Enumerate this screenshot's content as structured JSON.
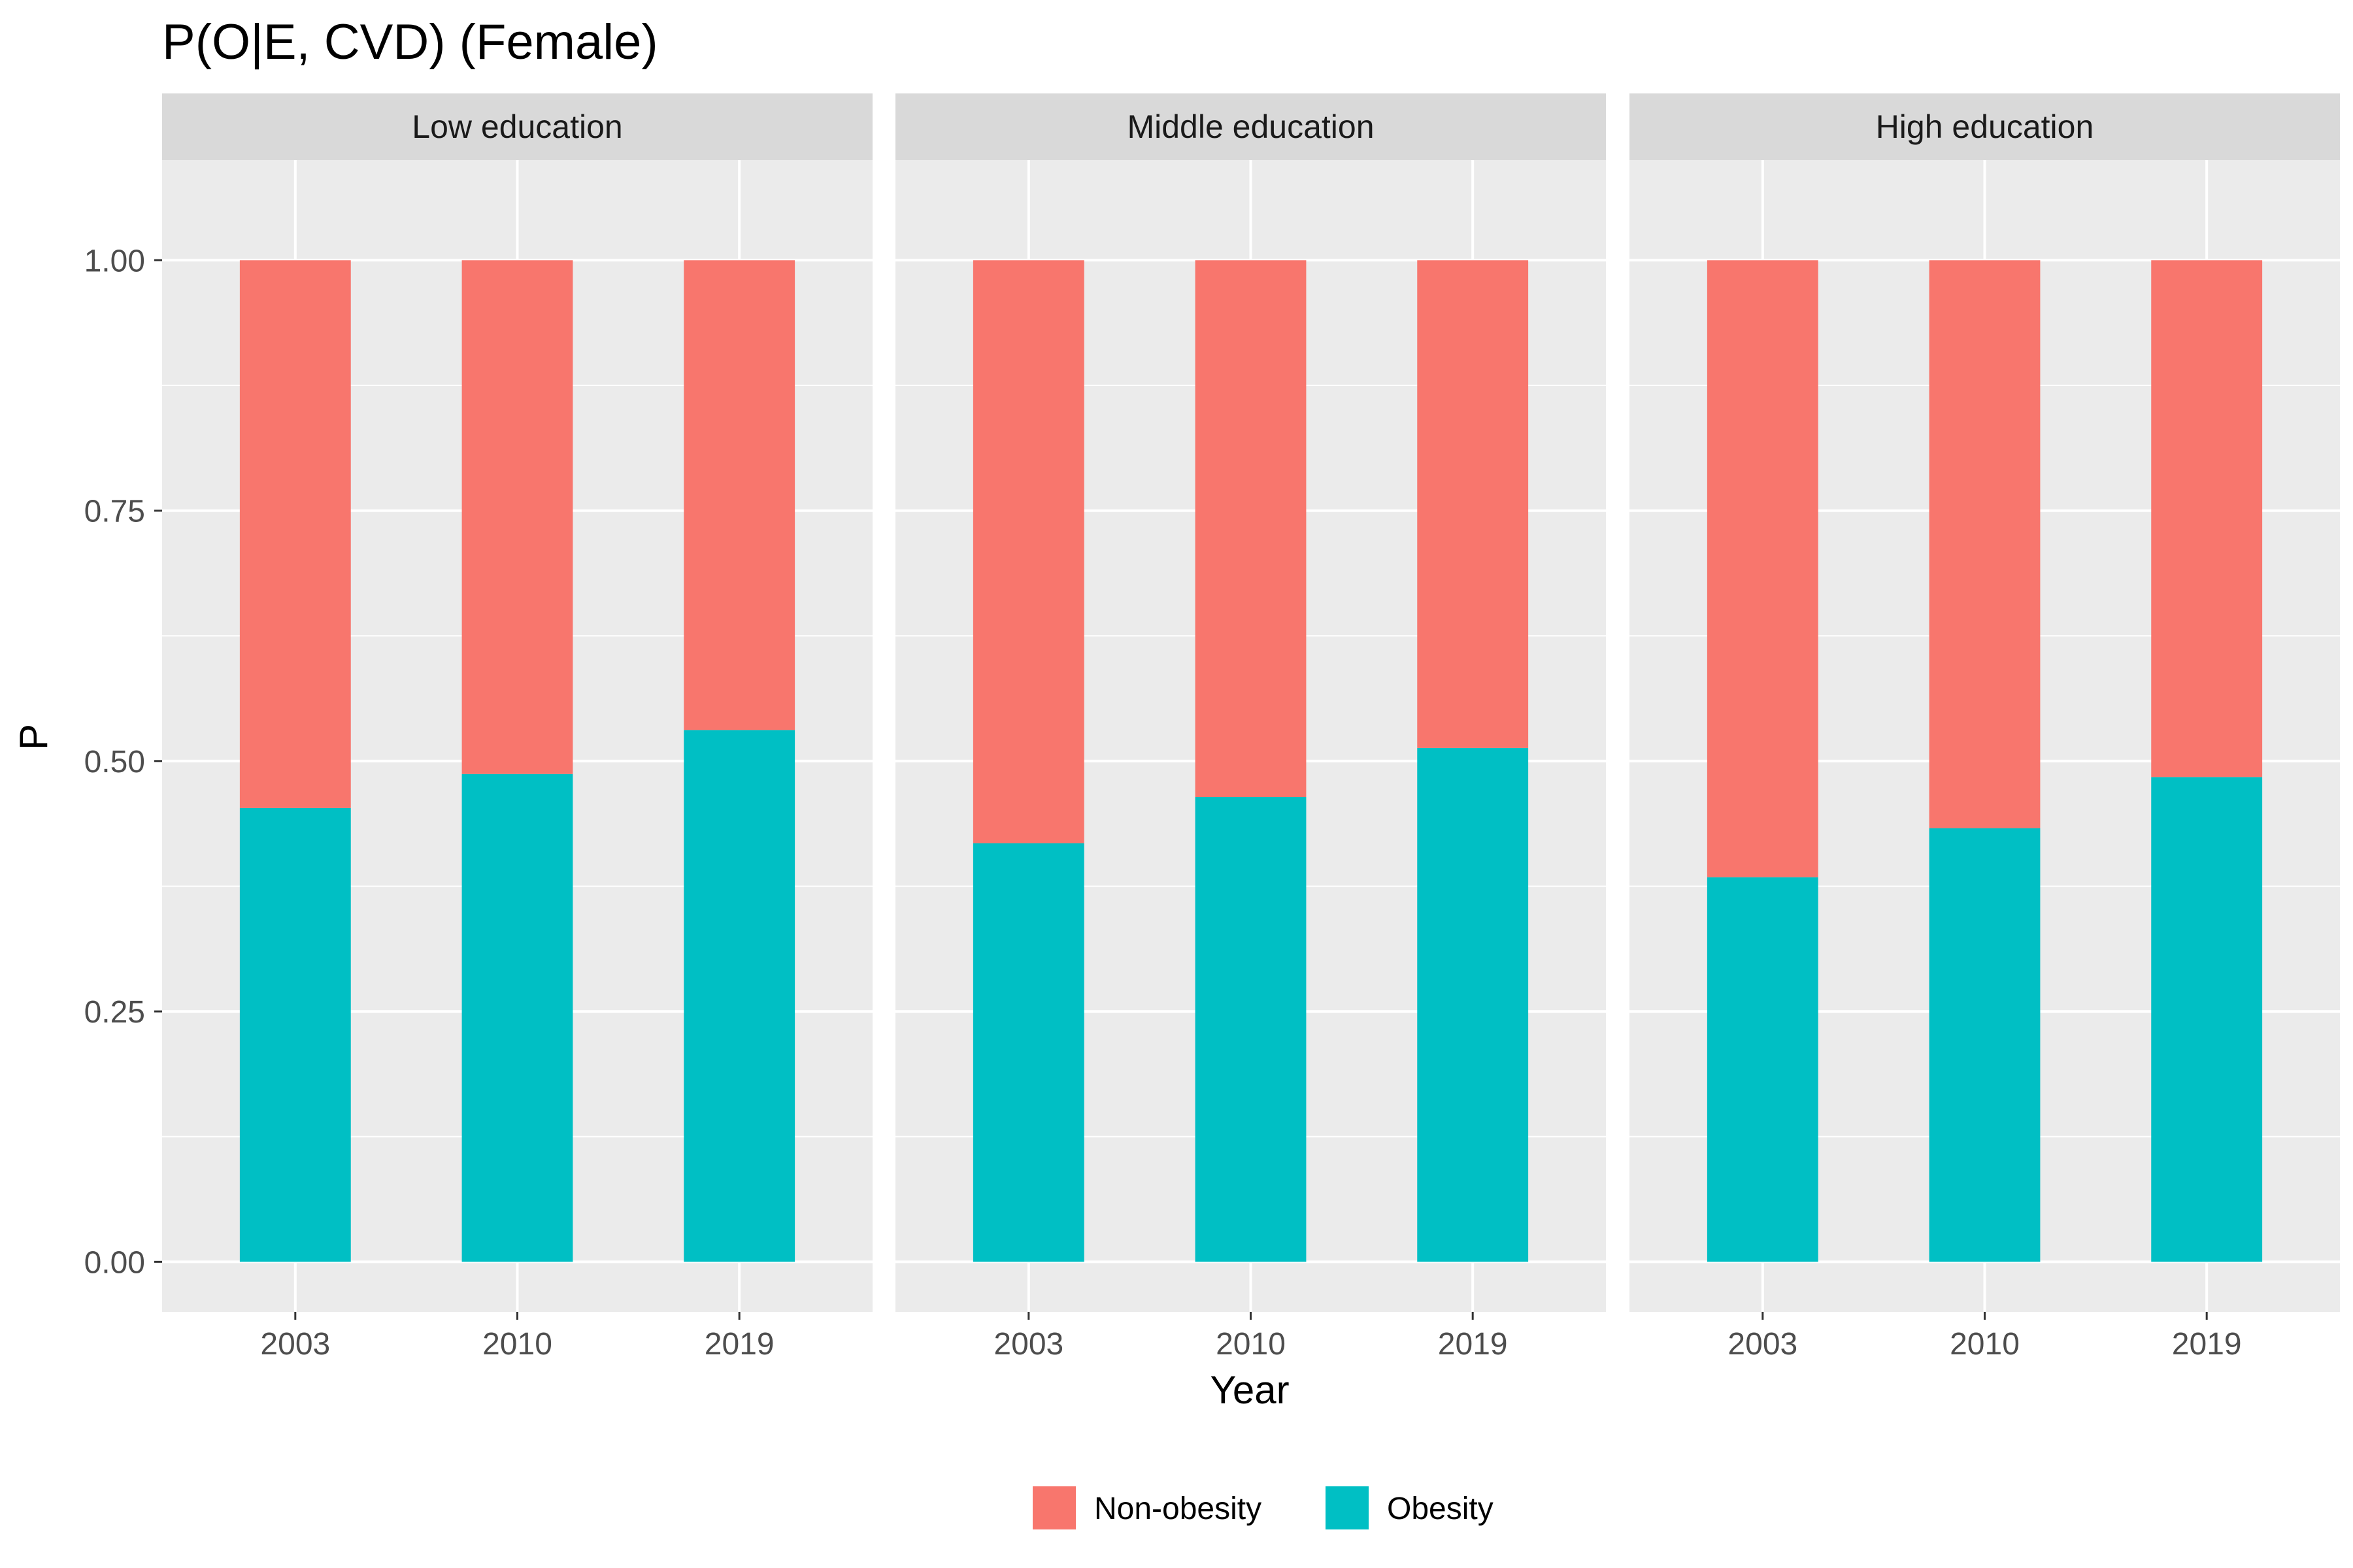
{
  "chart_data": {
    "type": "bar",
    "stacked": true,
    "title": "P(O|E, CVD) (Female)",
    "xlabel": "Year",
    "ylabel": "P",
    "ylim": [
      -0.05,
      1.1
    ],
    "y_ticks": [
      "0.00",
      "0.25",
      "0.50",
      "0.75",
      "1.00"
    ],
    "y_tick_values": [
      0,
      0.25,
      0.5,
      0.75,
      1.0
    ],
    "grid": true,
    "legend_position": "bottom",
    "categories": [
      "2003",
      "2010",
      "2019"
    ],
    "facets": [
      {
        "label": "Low education",
        "series": [
          {
            "name": "Obesity",
            "values": [
              0.453,
              0.487,
              0.531
            ]
          },
          {
            "name": "Non-obesity",
            "values": [
              0.547,
              0.513,
              0.469
            ]
          }
        ]
      },
      {
        "label": "Middle education",
        "series": [
          {
            "name": "Obesity",
            "values": [
              0.418,
              0.464,
              0.513
            ]
          },
          {
            "name": "Non-obesity",
            "values": [
              0.582,
              0.536,
              0.487
            ]
          }
        ]
      },
      {
        "label": "High education",
        "series": [
          {
            "name": "Obesity",
            "values": [
              0.384,
              0.433,
              0.484
            ]
          },
          {
            "name": "Non-obesity",
            "values": [
              0.616,
              0.567,
              0.516
            ]
          }
        ]
      }
    ],
    "legend": [
      {
        "name": "Non-obesity",
        "color": "#F8766D"
      },
      {
        "name": "Obesity",
        "color": "#00BFC4"
      }
    ],
    "colors": {
      "Obesity": "#00BFC4",
      "Non-obesity": "#F8766D",
      "panel_background": "#EBEBEB",
      "strip_background": "#D9D9D9"
    }
  }
}
